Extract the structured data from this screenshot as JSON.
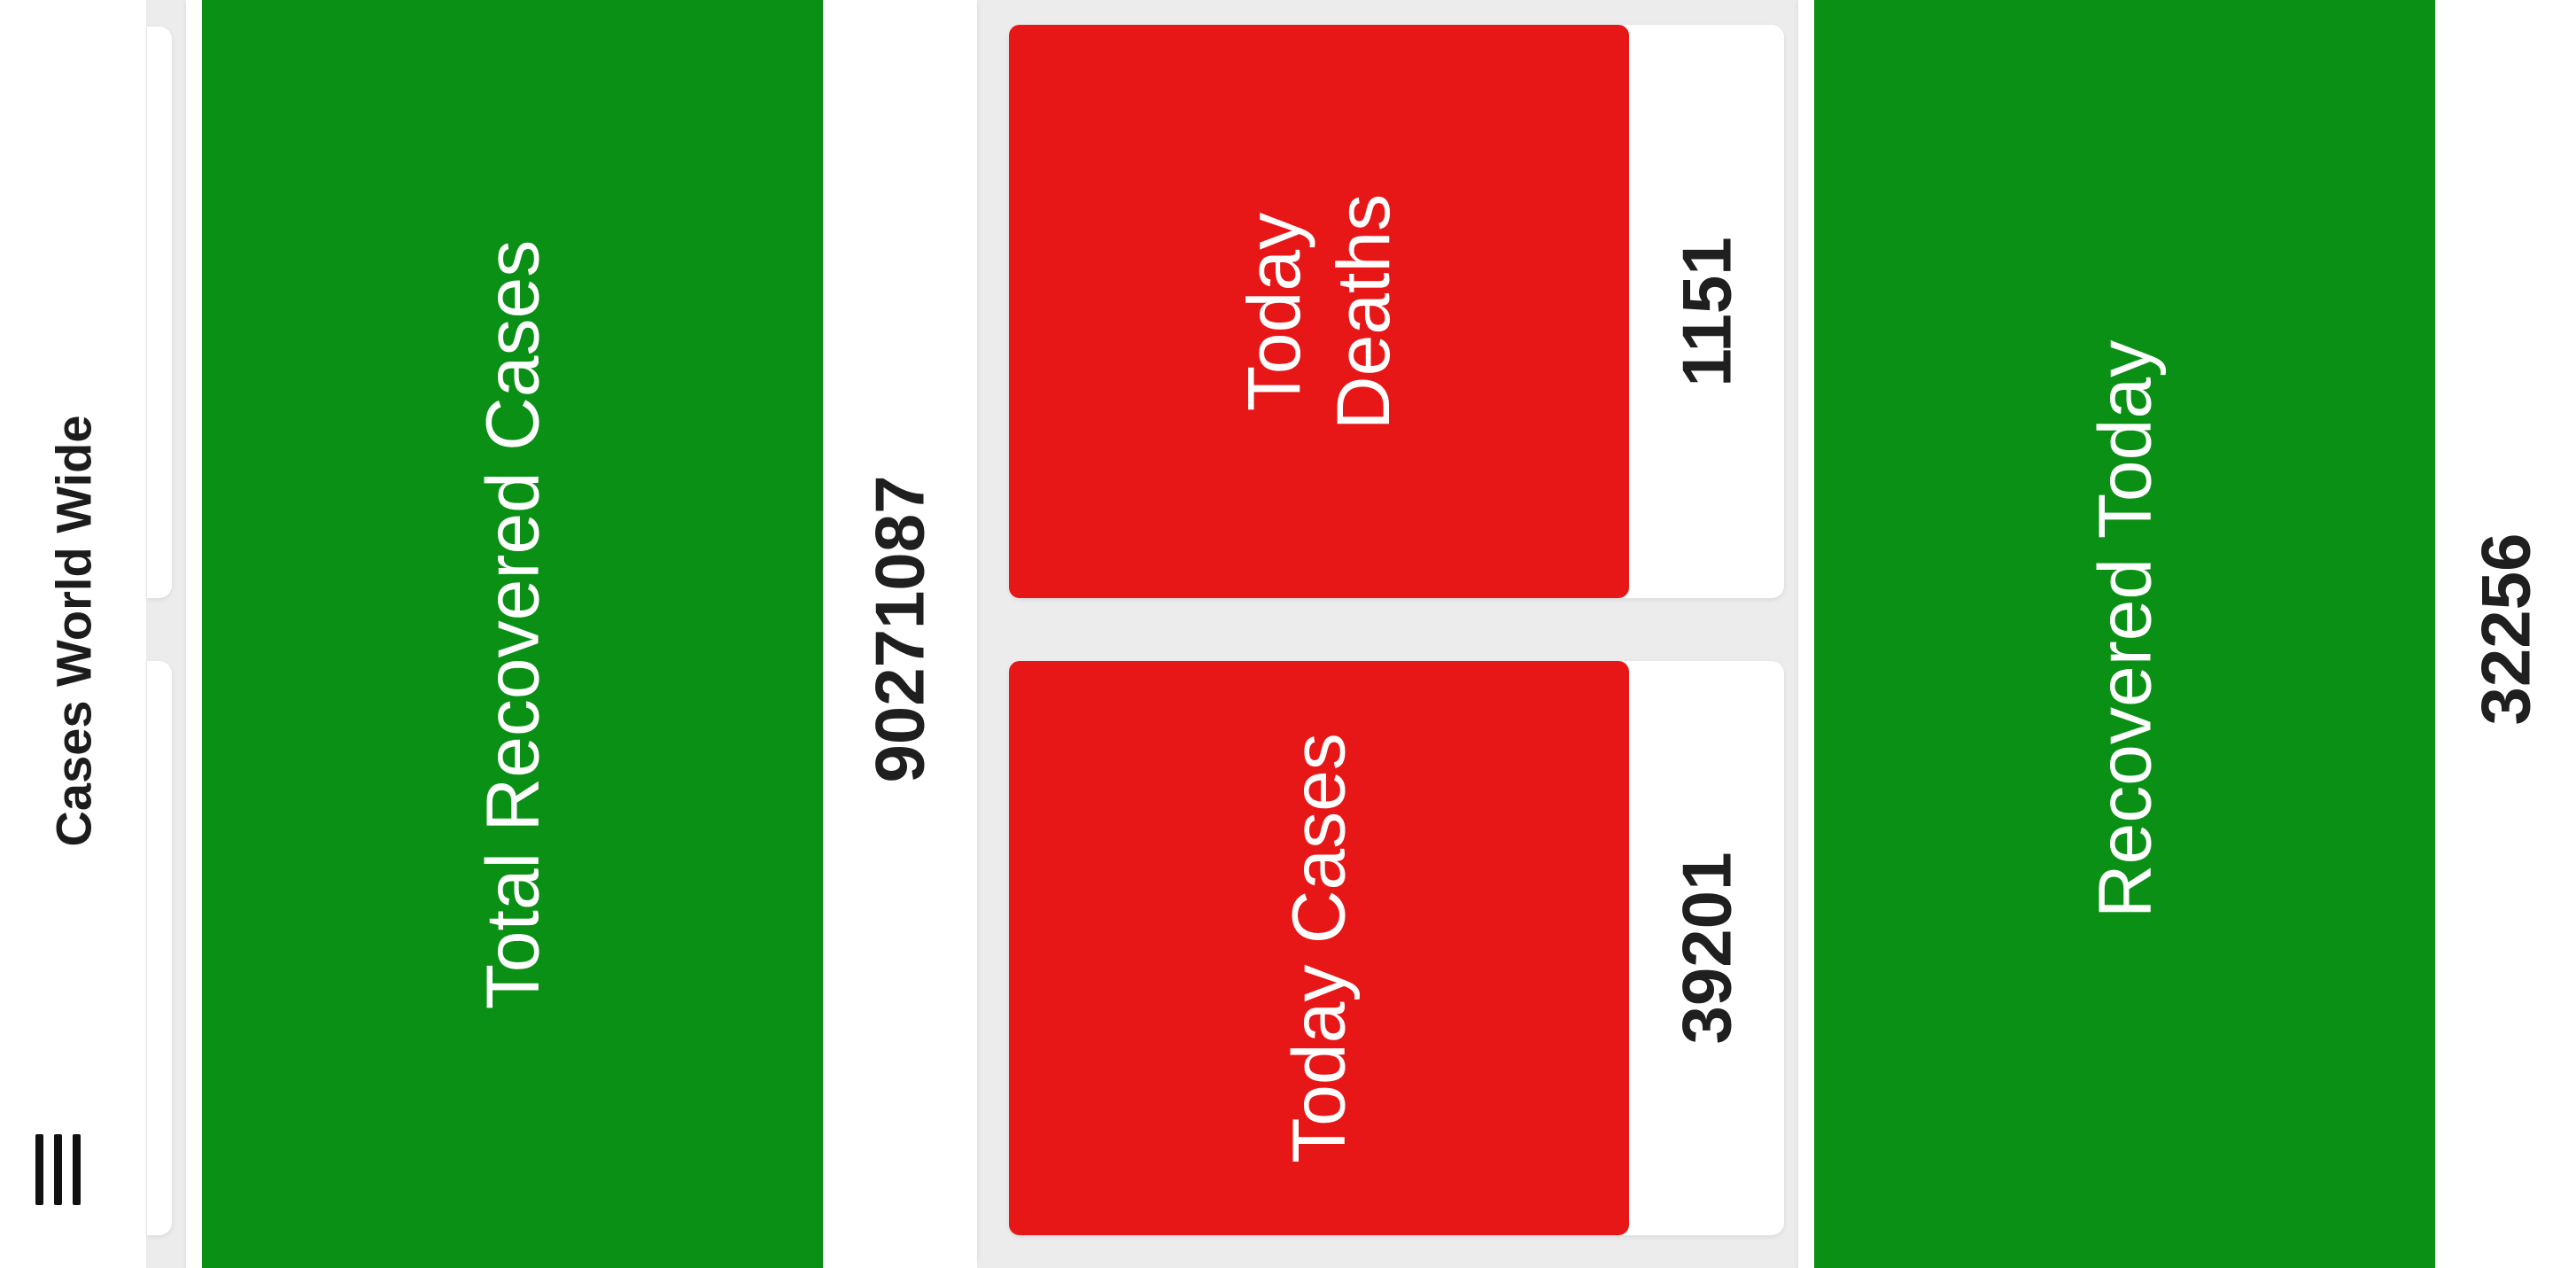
{
  "app_bar": {
    "title": "Cases World Wide",
    "menu_icon": "hamburger-menu-icon"
  },
  "cards": {
    "total_recovered": {
      "label": "Total Recovered Cases",
      "value": "90271087"
    },
    "today_deaths": {
      "label_line1": "Today",
      "label_line2": "Deaths",
      "value": "1151"
    },
    "today_cases": {
      "label": "Today Cases",
      "value": "39201"
    },
    "recovered_today": {
      "label": "Recovered Today",
      "value": "32256"
    }
  },
  "colors": {
    "recovered_green": "#0a9015",
    "alert_red": "#e71717",
    "background": "#ececec",
    "card": "#ffffff"
  }
}
